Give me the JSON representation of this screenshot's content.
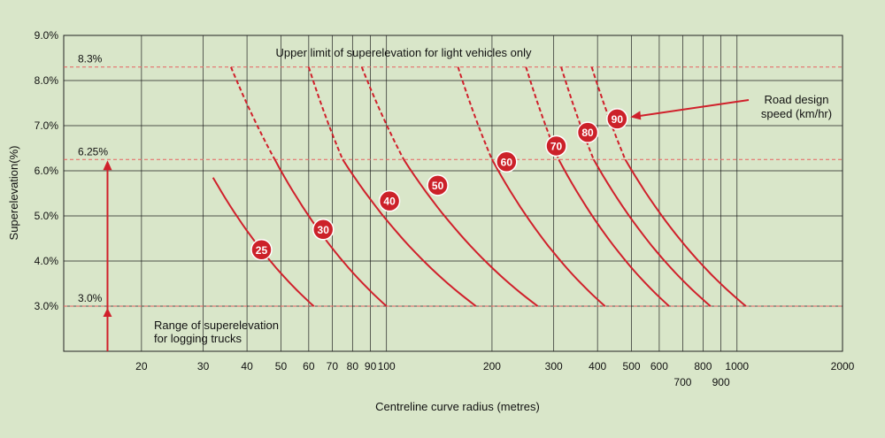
{
  "chart_data": {
    "type": "line",
    "xlabel": "Centreline curve radius (metres)",
    "ylabel": "Superelevation(%)",
    "x_scale": "log",
    "xlim": [
      12,
      2000
    ],
    "ylim": [
      2.0,
      9.0
    ],
    "grid": true,
    "x_ticks": [
      {
        "value": 20,
        "label": "20",
        "row": 0
      },
      {
        "value": 30,
        "label": "30",
        "row": 0
      },
      {
        "value": 40,
        "label": "40",
        "row": 0
      },
      {
        "value": 50,
        "label": "50",
        "row": 0
      },
      {
        "value": 60,
        "label": "60",
        "row": 0
      },
      {
        "value": 70,
        "label": "70",
        "row": 0
      },
      {
        "value": 80,
        "label": "80",
        "row": 0
      },
      {
        "value": 90,
        "label": "90",
        "row": 0
      },
      {
        "value": 100,
        "label": "100",
        "row": 0
      },
      {
        "value": 200,
        "label": "200",
        "row": 0
      },
      {
        "value": 300,
        "label": "300",
        "row": 0
      },
      {
        "value": 400,
        "label": "400",
        "row": 0
      },
      {
        "value": 500,
        "label": "500",
        "row": 0
      },
      {
        "value": 600,
        "label": "600",
        "row": 0
      },
      {
        "value": 700,
        "label": "700",
        "row": 1
      },
      {
        "value": 800,
        "label": "800",
        "row": 0
      },
      {
        "value": 900,
        "label": "900",
        "row": 1
      },
      {
        "value": 1000,
        "label": "1000",
        "row": 0
      },
      {
        "value": 2000,
        "label": "2000",
        "row": 0
      }
    ],
    "y_ticks": [
      {
        "value": 3.0,
        "label": "3.0%"
      },
      {
        "value": 4.0,
        "label": "4.0%"
      },
      {
        "value": 5.0,
        "label": "5.0%"
      },
      {
        "value": 6.0,
        "label": "6.0%"
      },
      {
        "value": 7.0,
        "label": "7.0%"
      },
      {
        "value": 8.0,
        "label": "8.0%"
      },
      {
        "value": 9.0,
        "label": "9.0%"
      }
    ],
    "reference_lines": [
      {
        "value": 8.3,
        "label": "8.3%"
      },
      {
        "value": 6.25,
        "label": "6.25%"
      },
      {
        "value": 3.0,
        "label": "3.0%"
      }
    ],
    "series": [
      {
        "name": "25",
        "solid": [
          [
            32,
            5.85
          ],
          [
            62,
            3.0
          ]
        ],
        "dashed": [],
        "marker": [
          44,
          4.25
        ]
      },
      {
        "name": "30",
        "solid": [
          [
            48,
            6.25
          ],
          [
            100,
            3.0
          ]
        ],
        "dashed": [
          [
            36,
            8.3
          ],
          [
            48,
            6.25
          ]
        ],
        "marker": [
          66,
          4.7
        ]
      },
      {
        "name": "40",
        "solid": [
          [
            75,
            6.25
          ],
          [
            180,
            3.0
          ]
        ],
        "dashed": [
          [
            60,
            8.3
          ],
          [
            75,
            6.25
          ]
        ],
        "marker": [
          102,
          5.33
        ]
      },
      {
        "name": "50",
        "solid": [
          [
            112,
            6.25
          ],
          [
            270,
            3.0
          ]
        ],
        "dashed": [
          [
            85,
            8.3
          ],
          [
            112,
            6.25
          ]
        ],
        "marker": [
          140,
          5.68
        ]
      },
      {
        "name": "60",
        "solid": [
          [
            200,
            6.25
          ],
          [
            420,
            3.0
          ]
        ],
        "dashed": [
          [
            160,
            8.3
          ],
          [
            200,
            6.25
          ]
        ],
        "marker": [
          220,
          6.2
        ]
      },
      {
        "name": "70",
        "solid": [
          [
            310,
            6.25
          ],
          [
            640,
            3.0
          ]
        ],
        "dashed": [
          [
            250,
            8.3
          ],
          [
            310,
            6.25
          ]
        ],
        "marker": [
          305,
          6.55
        ]
      },
      {
        "name": "80",
        "solid": [
          [
            390,
            6.25
          ],
          [
            840,
            3.0
          ]
        ],
        "dashed": [
          [
            315,
            8.3
          ],
          [
            390,
            6.25
          ]
        ],
        "marker": [
          375,
          6.85
        ]
      },
      {
        "name": "90",
        "solid": [
          [
            480,
            6.25
          ],
          [
            1060,
            3.0
          ]
        ],
        "dashed": [
          [
            385,
            8.3
          ],
          [
            480,
            6.25
          ]
        ],
        "marker": [
          455,
          7.15
        ]
      }
    ],
    "annotations": {
      "upper_limit": "Upper limit of superelevation for light vehicles only",
      "design_speed": [
        "Road design",
        "speed (km/hr)"
      ],
      "logging_trucks": [
        "Range of superelevation",
        "for logging trucks"
      ],
      "arrow_x_value": 16,
      "speed_arrow_target": 90
    },
    "colors": {
      "curve": "#d0202b",
      "marker_fill": "#cc2129",
      "marker_text": "#ffffff",
      "reference_line": "#e86060",
      "grid": "#222222",
      "plot_bg": "#d9e6c9"
    }
  }
}
